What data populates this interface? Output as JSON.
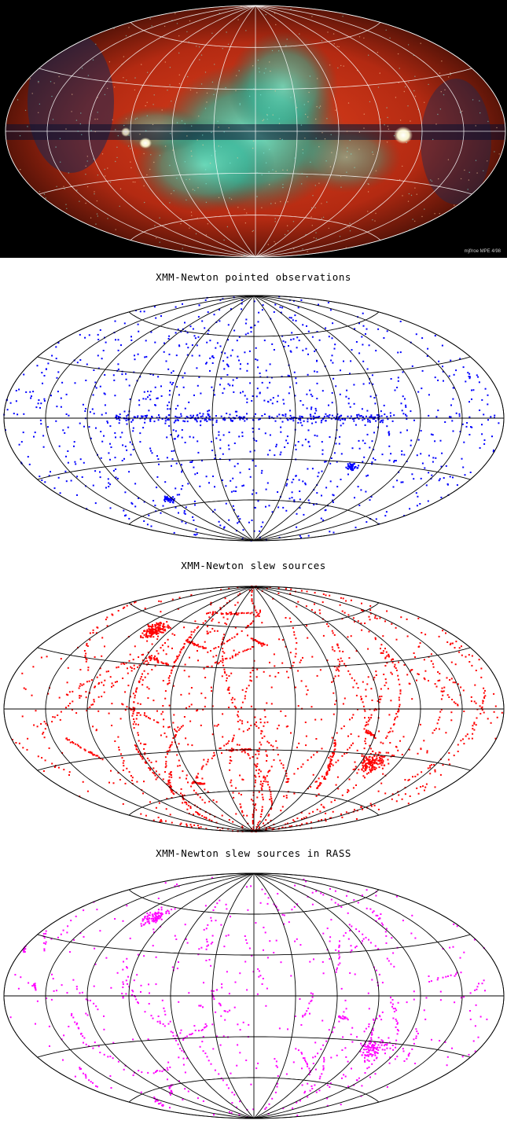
{
  "figure": {
    "panels": [
      {
        "id": "rosat-all-sky",
        "credit": "mjf/roe MPE 4/98",
        "colors": {
          "soft": "#d83a1a",
          "medium": "#3fd0b0",
          "background": "#000000"
        }
      },
      {
        "id": "pointed",
        "title": "XMM-Newton pointed observations",
        "dot_color": "#0000ff"
      },
      {
        "id": "slew",
        "title": "XMM-Newton slew sources",
        "dot_color": "#ff0000"
      },
      {
        "id": "slew-rass",
        "title": "XMM-Newton slew sources in RASS",
        "dot_color": "#ff00ff"
      }
    ],
    "projection": "Aitoff (galactic coordinates)",
    "grid_color": "#000000"
  }
}
